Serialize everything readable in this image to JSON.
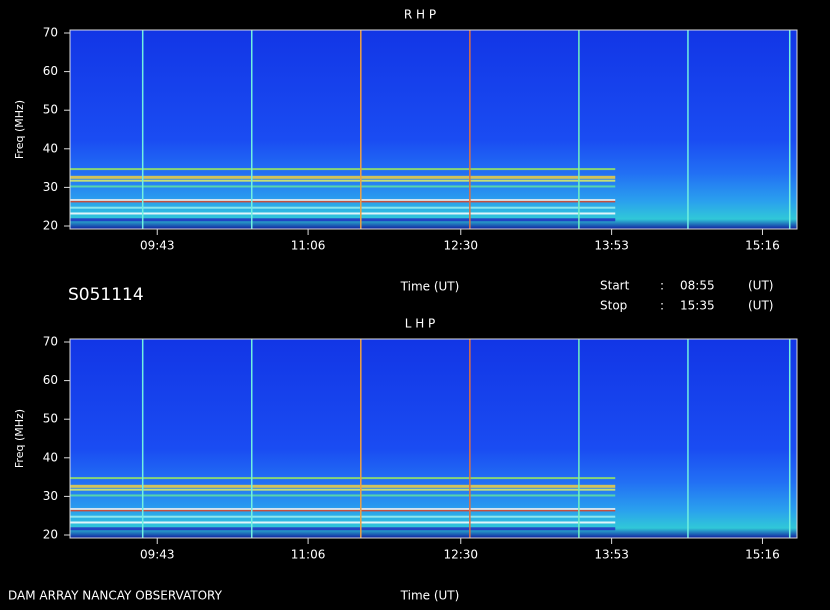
{
  "info": {
    "id": "S051114",
    "start_label": "Start",
    "start_sep": ":",
    "start_time": "08:55",
    "start_unit": "(UT)",
    "stop_label": "Stop",
    "stop_sep": ":",
    "stop_time": "15:35",
    "stop_unit": "(UT)",
    "footer": "DAM ARRAY  NANCAY OBSERVATORY"
  },
  "chart_data": [
    {
      "type": "spectrogram",
      "title": "R H P",
      "xlabel": "Time (UT)",
      "ylabel": "Freq (MHz)",
      "xlim": [
        535,
        935
      ],
      "xticks": [
        {
          "value": 583,
          "label": "09:43"
        },
        {
          "value": 666,
          "label": "11:06"
        },
        {
          "value": 750,
          "label": "12:30"
        },
        {
          "value": 833,
          "label": "13:53"
        },
        {
          "value": 916,
          "label": "15:16"
        }
      ],
      "ylim": [
        20,
        70
      ],
      "yticks": [
        20,
        30,
        40,
        50,
        60,
        70
      ]
    },
    {
      "type": "spectrogram",
      "title": "L H P",
      "xlabel": "Time (UT)",
      "ylabel": "Freq (MHz)",
      "xlim": [
        535,
        935
      ],
      "xticks": [
        {
          "value": 583,
          "label": "09:43"
        },
        {
          "value": 666,
          "label": "11:06"
        },
        {
          "value": 750,
          "label": "12:30"
        },
        {
          "value": 833,
          "label": "13:53"
        },
        {
          "value": 916,
          "label": "15:16"
        }
      ],
      "ylim": [
        20,
        70
      ],
      "yticks": [
        20,
        30,
        40,
        50,
        60,
        70
      ]
    }
  ]
}
